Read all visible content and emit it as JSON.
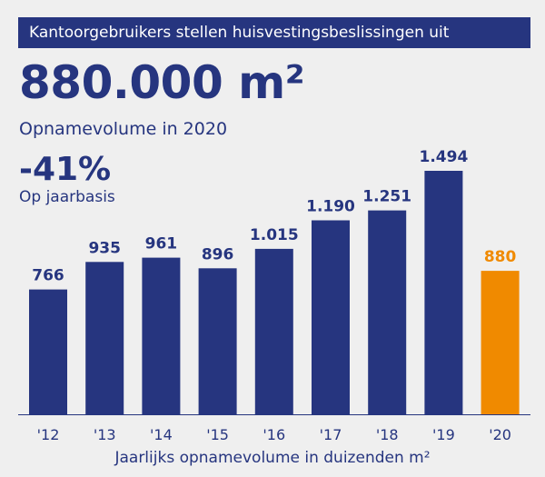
{
  "banner": {
    "text": "Kantoorgebruikers stellen huisvestingsbeslissingen uit"
  },
  "headline": {
    "value": "880.000 m²",
    "label": "Opnamevolume in 2020",
    "change": "-41%",
    "change_label": "Op jaarbasis"
  },
  "colors": {
    "primary": "#26357f",
    "highlight": "#f08a00",
    "background": "#efefef"
  },
  "chart_data": {
    "type": "bar",
    "title": "",
    "xlabel": "Jaarlijks opnamevolume in duizenden m²",
    "ylabel": "",
    "categories": [
      "'12",
      "'13",
      "'14",
      "'15",
      "'16",
      "'17",
      "'18",
      "'19",
      "'20"
    ],
    "values": [
      766,
      935,
      961,
      896,
      1015,
      1190,
      1251,
      1494,
      880
    ],
    "value_labels": [
      "766",
      "935",
      "961",
      "896",
      "1.015",
      "1.190",
      "1.251",
      "1.494",
      "880"
    ],
    "highlight_index": 8,
    "ylim": [
      0,
      1494
    ],
    "grid": false
  }
}
